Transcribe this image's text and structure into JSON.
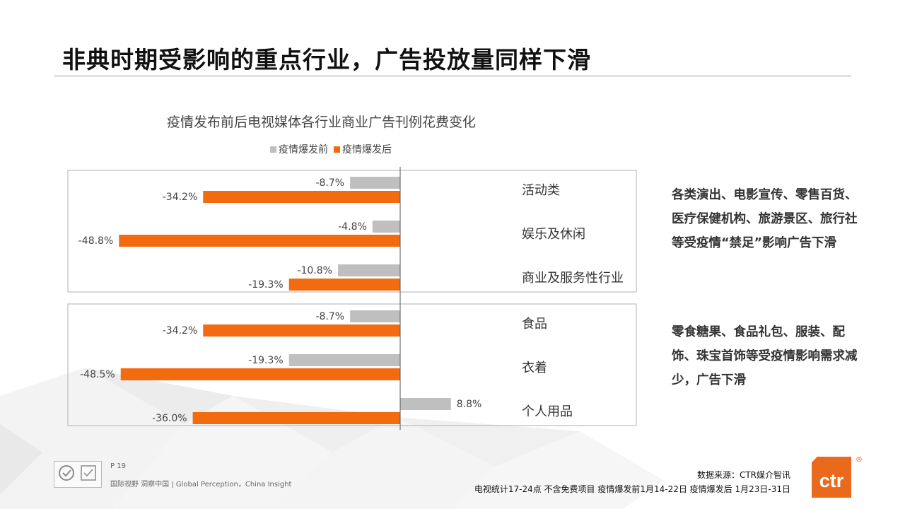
{
  "page": {
    "title": "非典时期受影响的重点行业，广告投放量同样下滑",
    "notes": [
      "各类演出、电影宣传、零售百货、医疗保健机构、旅游景区、旅行社等受疫情“禁足”影响广告下滑",
      "零食糖果、食品礼包、服装、配饰、珠宝首饰等受疫情影响需求减少，广告下滑"
    ],
    "page_number": "P 19",
    "slogan": "国际视野 洞察中国 | Global Perception，China Insight",
    "source": "数据来源：CTR媒介智讯",
    "period_note": "电视统计17-24点  不含免费项目  疫情爆发前1月14-22日  疫情爆发后 1月23日-31日",
    "logo_text": "ctr",
    "logo_mark": "®",
    "colors": {
      "accent": "#ea6a1b",
      "before": "#bfbfbf",
      "after": "#f26b0f"
    }
  },
  "chart_data": {
    "type": "bar",
    "orientation": "horizontal",
    "title": "疫情发布前后电视媒体各行业商业广告刊例花费变化",
    "legend_position": "top",
    "value_format": "percent",
    "categories": [
      "活动类",
      "娱乐及休闲",
      "商业及服务性行业",
      "食品",
      "衣着",
      "个人用品"
    ],
    "series": [
      {
        "name": "疫情爆发前",
        "color": "#bfbfbf",
        "values": [
          -8.7,
          -4.8,
          -10.8,
          -8.7,
          -19.3,
          8.8
        ]
      },
      {
        "name": "疫情爆发后",
        "color": "#f26b0f",
        "values": [
          -34.2,
          -48.8,
          -19.3,
          -34.2,
          -48.5,
          -36.0
        ]
      }
    ],
    "groups": [
      {
        "categories": [
          "活动类",
          "娱乐及休闲",
          "商业及服务性行业"
        ]
      },
      {
        "categories": [
          "食品",
          "衣着",
          "个人用品"
        ]
      }
    ]
  }
}
